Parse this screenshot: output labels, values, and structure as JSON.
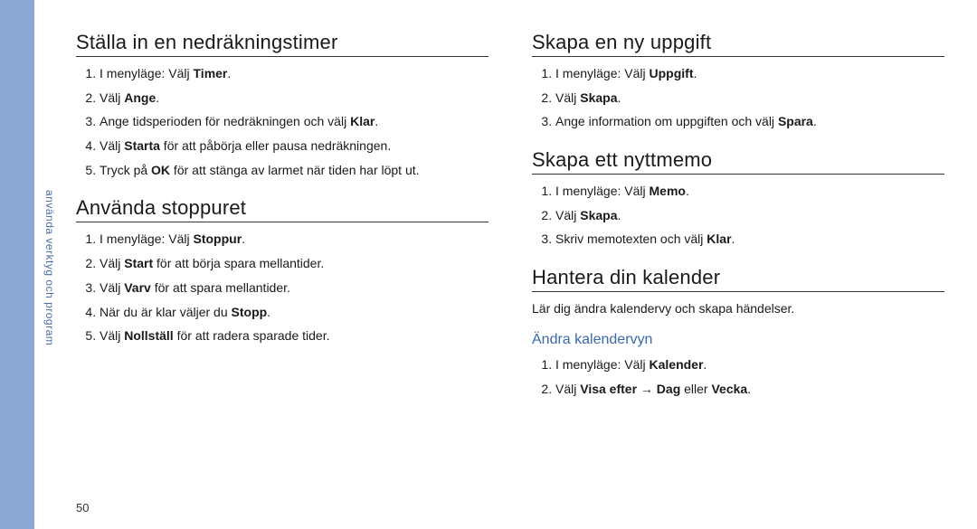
{
  "side_label": "använda verktyg och program",
  "page_number": "50",
  "left": {
    "section1": {
      "title": "Ställa in en nedräkningstimer",
      "items": [
        {
          "pre": "I menyläge: Välj ",
          "b1": "Timer",
          "post": "."
        },
        {
          "pre": "Välj ",
          "b1": "Ange",
          "post": "."
        },
        {
          "pre": "Ange tidsperioden för nedräkningen och välj ",
          "b1": "Klar",
          "post": "."
        },
        {
          "pre": "Välj ",
          "b1": "Starta",
          "post": " för att påbörja eller pausa nedräkningen."
        },
        {
          "pre": "Tryck på ",
          "b1": "OK",
          "post": " för att stänga av larmet när tiden har löpt ut."
        }
      ]
    },
    "section2": {
      "title": "Använda stoppuret",
      "items": [
        {
          "pre": "I menyläge: Välj ",
          "b1": "Stoppur",
          "post": "."
        },
        {
          "pre": "Välj ",
          "b1": "Start",
          "post": " för att börja spara mellantider."
        },
        {
          "pre": "Välj ",
          "b1": "Varv",
          "post": " för att spara mellantider."
        },
        {
          "pre": "När du är klar väljer du ",
          "b1": "Stopp",
          "post": "."
        },
        {
          "pre": "Välj ",
          "b1": "Nollställ",
          "post": " för att radera sparade tider."
        }
      ]
    }
  },
  "right": {
    "section1": {
      "title": "Skapa en ny uppgift",
      "items": [
        {
          "pre": "I menyläge: Välj ",
          "b1": "Uppgift",
          "post": "."
        },
        {
          "pre": "Välj ",
          "b1": "Skapa",
          "post": "."
        },
        {
          "pre": "Ange information om uppgiften och välj ",
          "b1": "Spara",
          "post": "."
        }
      ]
    },
    "section2": {
      "title": "Skapa ett nyttmemo",
      "items": [
        {
          "pre": "I menyläge: Välj ",
          "b1": "Memo",
          "post": "."
        },
        {
          "pre": "Välj ",
          "b1": "Skapa",
          "post": "."
        },
        {
          "pre": "Skriv memotexten och välj ",
          "b1": "Klar",
          "post": "."
        }
      ]
    },
    "section3": {
      "title": "Hantera din kalender",
      "para": "Lär dig ändra kalendervy och skapa händelser.",
      "sub": "Ändra kalendervyn",
      "items": [
        {
          "pre": "I menyläge: Välj ",
          "b1": "Kalender",
          "post": "."
        },
        {
          "pre": "Välj ",
          "b1": "Visa efter",
          "mid": " → ",
          "b2": "Dag",
          "mid2": " eller ",
          "b3": "Vecka",
          "post": "."
        }
      ]
    }
  }
}
